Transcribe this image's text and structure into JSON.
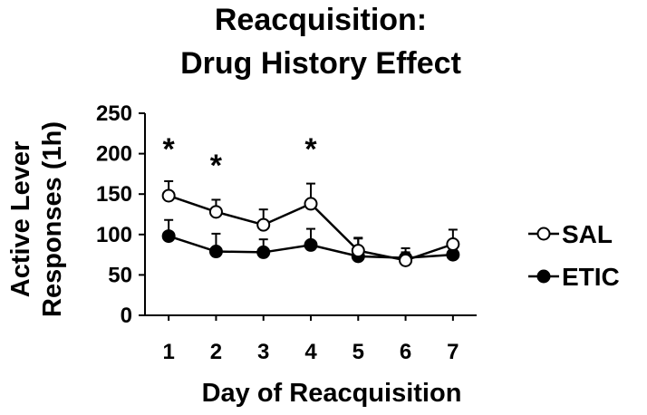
{
  "chart_data": {
    "type": "line",
    "title_lines": [
      "Reacquisition:",
      "Drug History Effect"
    ],
    "xlabel": "Day of Reacquisition",
    "ylabel_lines": [
      "Active Lever",
      "Responses (1h)"
    ],
    "x": [
      1,
      2,
      3,
      4,
      5,
      6,
      7
    ],
    "x_tick_labels": [
      "1",
      "2",
      "3",
      "4",
      "5",
      "6",
      "7"
    ],
    "ylim": [
      0,
      250
    ],
    "y_ticks": [
      0,
      50,
      100,
      150,
      200,
      250
    ],
    "y_tick_labels": [
      "0",
      "50",
      "100",
      "150",
      "200",
      "250"
    ],
    "grid": false,
    "legend_position": "right",
    "series": [
      {
        "name": "SAL",
        "marker": "open-circle",
        "color": "#000000",
        "values": [
          148,
          128,
          112,
          138,
          80,
          68,
          88
        ],
        "errors": [
          18,
          15,
          19,
          25,
          16,
          10,
          18
        ]
      },
      {
        "name": "ETIC",
        "marker": "filled-circle",
        "color": "#000000",
        "values": [
          98,
          79,
          78,
          87,
          73,
          71,
          75
        ],
        "errors": [
          20,
          22,
          16,
          20,
          22,
          12,
          6
        ]
      }
    ],
    "annotations": [
      {
        "text": "*",
        "x": 1,
        "y": 206
      },
      {
        "text": "*",
        "x": 2,
        "y": 186
      },
      {
        "text": "*",
        "x": 4,
        "y": 206
      }
    ]
  }
}
